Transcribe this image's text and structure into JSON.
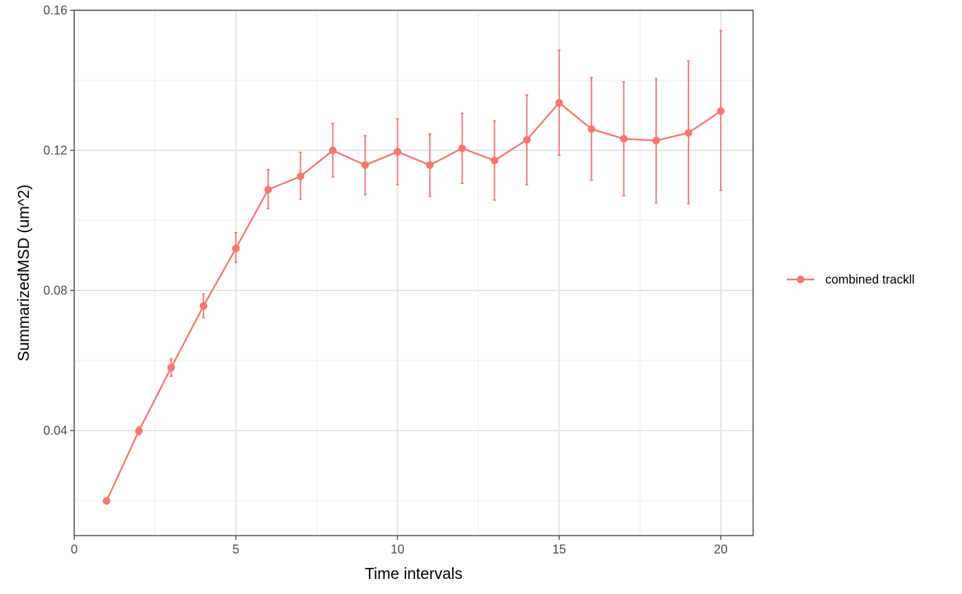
{
  "chart_data": {
    "type": "line",
    "xlabel": "Time intervals",
    "ylabel": "SummarizedMSD (um^2)",
    "xlim": [
      0,
      21
    ],
    "ylim": [
      0.01,
      0.16
    ],
    "x_ticks": [
      0,
      5,
      10,
      15,
      20
    ],
    "x_tick_labels": [
      "0",
      "5",
      "10",
      "15",
      "20"
    ],
    "y_ticks": [
      0.04,
      0.08,
      0.12,
      0.16
    ],
    "y_tick_labels": [
      "0.04",
      "0.08",
      "0.12",
      "0.16"
    ],
    "grid": true,
    "legend_position": "right",
    "series": [
      {
        "name": "combined trackll",
        "color": "#F8766D",
        "x": [
          1,
          2,
          3,
          4,
          5,
          6,
          7,
          8,
          9,
          10,
          11,
          12,
          13,
          14,
          15,
          16,
          17,
          18,
          19,
          20
        ],
        "y": [
          0.0199,
          0.0399,
          0.058,
          0.0756,
          0.092,
          0.1088,
          0.1126,
          0.12,
          0.1158,
          0.1196,
          0.1158,
          0.1206,
          0.1171,
          0.123,
          0.1336,
          0.1261,
          0.1233,
          0.1228,
          0.125,
          0.1312
        ],
        "err_low": [
          0.0199,
          0.0388,
          0.0555,
          0.0723,
          0.088,
          0.1034,
          0.1061,
          0.1124,
          0.1074,
          0.1102,
          0.1069,
          0.1106,
          0.1058,
          0.1102,
          0.1186,
          0.1115,
          0.1071,
          0.105,
          0.1048,
          0.1086
        ],
        "err_high": [
          0.0199,
          0.0411,
          0.0605,
          0.079,
          0.0965,
          0.1145,
          0.1194,
          0.1277,
          0.1242,
          0.129,
          0.1247,
          0.1306,
          0.1284,
          0.1358,
          0.1486,
          0.1408,
          0.1396,
          0.1405,
          0.1455,
          0.1542
        ]
      }
    ]
  }
}
